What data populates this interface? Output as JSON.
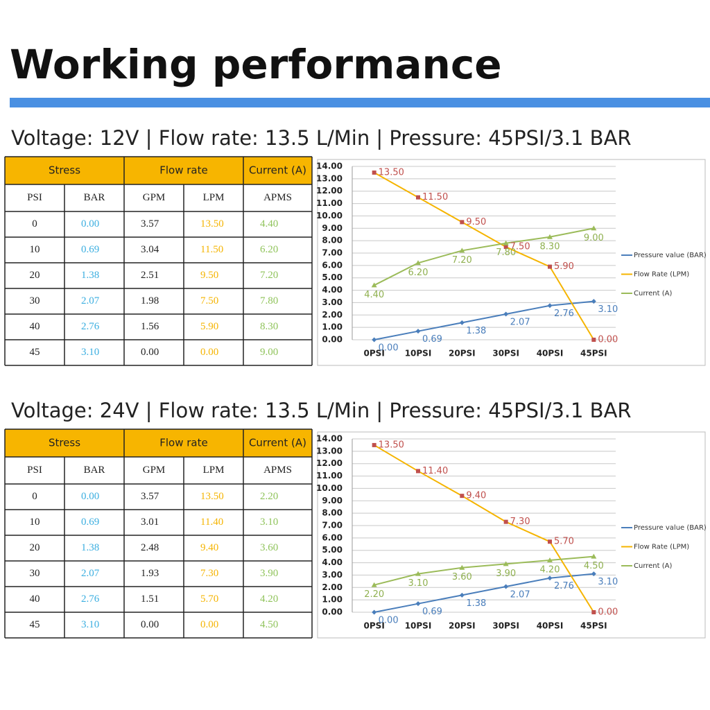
{
  "title": "Working performance",
  "sections": [
    {
      "subtitle": "Voltage: 12V | Flow rate: 13.5 L/Min | Pressure: 45PSI/3.1 BAR",
      "table": {
        "groups": [
          "Stress",
          "Flow rate",
          "Current (A)"
        ],
        "columns": [
          "PSI",
          "BAR",
          "GPM",
          "LPM",
          "APMS"
        ],
        "rows": [
          [
            "0",
            "0.00",
            "3.57",
            "13.50",
            "4.40"
          ],
          [
            "10",
            "0.69",
            "3.04",
            "11.50",
            "6.20"
          ],
          [
            "20",
            "1.38",
            "2.51",
            "9.50",
            "7.20"
          ],
          [
            "30",
            "2.07",
            "1.98",
            "7.50",
            "7.80"
          ],
          [
            "40",
            "2.76",
            "1.56",
            "5.90",
            "8.30"
          ],
          [
            "45",
            "3.10",
            "0.00",
            "0.00",
            "9.00"
          ]
        ]
      }
    },
    {
      "subtitle": "Voltage: 24V | Flow rate: 13.5 L/Min | Pressure: 45PSI/3.1 BAR",
      "table": {
        "groups": [
          "Stress",
          "Flow rate",
          "Current (A)"
        ],
        "columns": [
          "PSI",
          "BAR",
          "GPM",
          "LPM",
          "APMS"
        ],
        "rows": [
          [
            "0",
            "0.00",
            "3.57",
            "13.50",
            "2.20"
          ],
          [
            "10",
            "0.69",
            "3.01",
            "11.40",
            "3.10"
          ],
          [
            "20",
            "1.38",
            "2.48",
            "9.40",
            "3.60"
          ],
          [
            "30",
            "2.07",
            "1.93",
            "7.30",
            "3.90"
          ],
          [
            "40",
            "2.76",
            "1.51",
            "5.70",
            "4.20"
          ],
          [
            "45",
            "3.10",
            "0.00",
            "0.00",
            "4.50"
          ]
        ]
      }
    }
  ],
  "chart_data": [
    {
      "type": "line",
      "categories": [
        "0PSI",
        "10PSI",
        "20PSI",
        "30PSI",
        "40PSI",
        "45PSI"
      ],
      "series": [
        {
          "name": "Pressure value (BAR)",
          "color": "#4a7ebb",
          "values": [
            0,
            0.69,
            1.38,
            2.07,
            2.76,
            3.1
          ],
          "value_labels": [
            "0.00",
            "0.69",
            "1.38",
            "2.07",
            "2.76",
            "3.10"
          ]
        },
        {
          "name": "Flow Rate (LPM)",
          "color": "#f5b400",
          "values": [
            13.5,
            11.5,
            9.5,
            7.5,
            5.9,
            0
          ],
          "value_labels": [
            "13.50",
            "11.50",
            "9.50",
            "7.50",
            "5.90",
            "0.00"
          ]
        },
        {
          "name": "Current (A)",
          "color": "#9bbb59",
          "values": [
            4.4,
            6.2,
            7.2,
            7.8,
            8.3,
            9
          ],
          "value_labels": [
            "4.40",
            "6.20",
            "7.20",
            "7.80",
            "8.30",
            "9.00"
          ]
        }
      ],
      "ylim": [
        0,
        14
      ],
      "yticks": [
        {
          "value": 0,
          "label": "0.00"
        },
        {
          "value": 1,
          "label": "1.00"
        },
        {
          "value": 2,
          "label": "2.00"
        },
        {
          "value": 3,
          "label": "3.00"
        },
        {
          "value": 4,
          "label": "4.00"
        },
        {
          "value": 5,
          "label": "5.00"
        },
        {
          "value": 6,
          "label": "6.00"
        },
        {
          "value": 7,
          "label": "7.00"
        },
        {
          "value": 8,
          "label": "8.00"
        },
        {
          "value": 9,
          "label": "9.00"
        },
        {
          "value": 10,
          "label": "10.00"
        },
        {
          "value": 11,
          "label": "11.00"
        },
        {
          "value": 12,
          "label": "12.00"
        },
        {
          "value": 13,
          "label": "13.00"
        },
        {
          "value": 14,
          "label": "14.00"
        }
      ],
      "grid": true,
      "legend": "right"
    },
    {
      "type": "line",
      "categories": [
        "0PSI",
        "10PSI",
        "20PSI",
        "30PSI",
        "40PSI",
        "45PSI"
      ],
      "series": [
        {
          "name": "Pressure value (BAR)",
          "color": "#4a7ebb",
          "values": [
            0,
            0.69,
            1.38,
            2.07,
            2.76,
            3.1
          ],
          "value_labels": [
            "0.00",
            "0.69",
            "1.38",
            "2.07",
            "2.76",
            "3.10"
          ]
        },
        {
          "name": "Flow Rate (LPM)",
          "color": "#f5b400",
          "values": [
            13.5,
            11.4,
            9.4,
            7.3,
            5.7,
            0
          ],
          "value_labels": [
            "13.50",
            "11.40",
            "9.40",
            "7.30",
            "5.70",
            "0.00"
          ]
        },
        {
          "name": "Current (A)",
          "color": "#9bbb59",
          "values": [
            2.2,
            3.1,
            3.6,
            3.9,
            4.2,
            4.5
          ],
          "value_labels": [
            "2.20",
            "3.10",
            "3.60",
            "3.90",
            "4.20",
            "4.50"
          ]
        }
      ],
      "ylim": [
        0,
        14
      ],
      "yticks": [
        {
          "value": 0,
          "label": "0.00"
        },
        {
          "value": 1,
          "label": "1.00"
        },
        {
          "value": 2,
          "label": "2.00"
        },
        {
          "value": 3,
          "label": "3.00"
        },
        {
          "value": 4,
          "label": "4.00"
        },
        {
          "value": 5,
          "label": "5.00"
        },
        {
          "value": 6,
          "label": "6.00"
        },
        {
          "value": 7,
          "label": "7.00"
        },
        {
          "value": 8,
          "label": "8.00"
        },
        {
          "value": 9,
          "label": "9.00"
        },
        {
          "value": 10,
          "label": "10.00"
        },
        {
          "value": 11,
          "label": "11.00"
        },
        {
          "value": 12,
          "label": "12.00"
        },
        {
          "value": 13,
          "label": "13.00"
        },
        {
          "value": 14,
          "label": "14.00"
        }
      ],
      "grid": true,
      "legend": "right"
    }
  ]
}
